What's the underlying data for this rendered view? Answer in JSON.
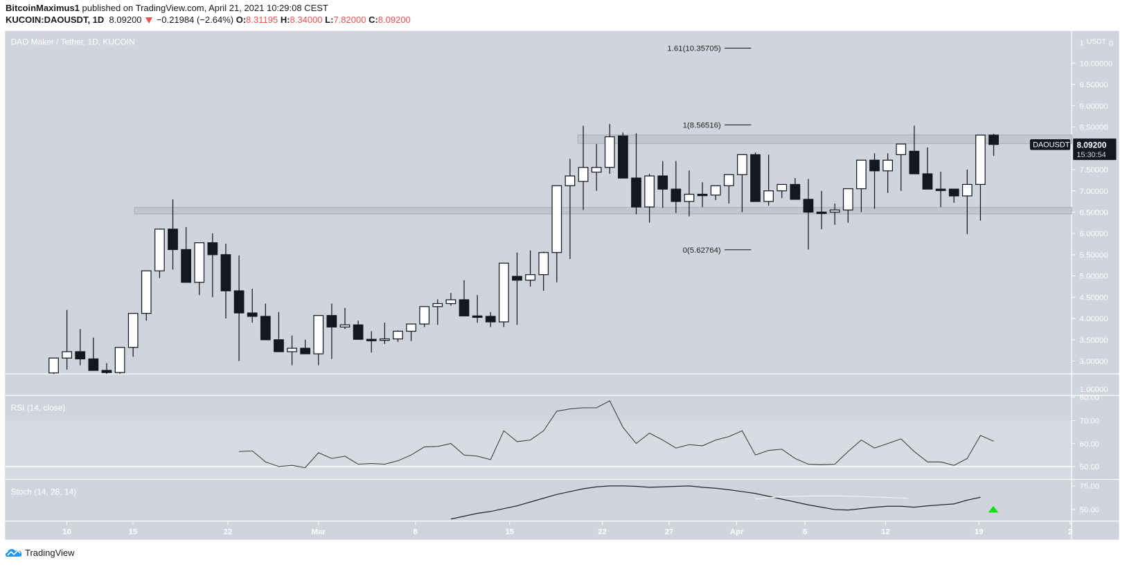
{
  "header": {
    "author": "BitcoinMaximus1",
    "published_text": " published on TradingView.com, April 21, 2021 10:29:08 CEST",
    "symbol": "KUCOIN:DAOUSDT, 1D",
    "last": "8.09200",
    "change": "−0.21984 (−2.64%)",
    "o_label": "O:",
    "o": "8.31195",
    "h_label": "H:",
    "h": "8.34000",
    "l_label": "L:",
    "l": "7.82000",
    "c_label": "C:",
    "c": "8.09200"
  },
  "colors": {
    "pane_bg": "#d1d4dc",
    "rsi_band": "#d8dbe2",
    "bull_body": "#ffffff",
    "bear_body": "#131722",
    "outline": "#131722",
    "zone_fill": "#c3c6cf",
    "zone_stroke": "#a9acb4",
    "axis_text": "#ffffff",
    "green_arrow": "#00e600",
    "loss_red": "#ef5350"
  },
  "main_pane": {
    "legend": "DAO Maker / Tether, 1D, KUCOIN",
    "currency": "USDT",
    "y_ticks": [
      "10.00000",
      "9.50000",
      "9.00000",
      "8.50000",
      "7.50000",
      "7.00000",
      "6.50000",
      "6.00000",
      "5.50000",
      "5.00000",
      "4.50000",
      "4.00000",
      "3.50000",
      "3.00000"
    ],
    "last_price_label": "8.09200",
    "countdown": "15:30:54",
    "symbol_tag": "DAOUSDT",
    "below_axis_label": "1.00000",
    "fib_labels": [
      "1.61(10.35705)",
      "1(8.56516)",
      "0(5.62764)"
    ]
  },
  "rsi_pane": {
    "legend": "RSI (14, close)",
    "y_ticks": [
      "80.00",
      "70.00",
      "60.00",
      "50.00"
    ]
  },
  "stoch_pane": {
    "legend": "Stoch (14, 28, 14)",
    "y_ticks": [
      "75.00",
      "50.00"
    ]
  },
  "x_axis": {
    "labels": [
      "10",
      "15",
      "22",
      "Mar",
      "8",
      "15",
      "22",
      "27",
      "Apr",
      "6",
      "12",
      "19",
      "2"
    ]
  },
  "footer": {
    "brand": "TradingView"
  },
  "chart_data": [
    {
      "type": "candlestick",
      "title": "DAO Maker / Tether, 1D, KUCOIN",
      "xlabel": "",
      "ylabel": "USDT",
      "ylim": [
        2.75,
        10.5
      ],
      "x": [
        "Feb 9",
        "Feb 10",
        "Feb 11",
        "Feb 12",
        "Feb 13",
        "Feb 14",
        "Feb 15",
        "Feb 16",
        "Feb 17",
        "Feb 18",
        "Feb 19",
        "Feb 20",
        "Feb 21",
        "Feb 22",
        "Feb 23",
        "Feb 24",
        "Feb 25",
        "Feb 26",
        "Feb 27",
        "Feb 28",
        "Mar 1",
        "Mar 2",
        "Mar 3",
        "Mar 4",
        "Mar 5",
        "Mar 6",
        "Mar 7",
        "Mar 8",
        "Mar 9",
        "Mar 10",
        "Mar 11",
        "Mar 12",
        "Mar 13",
        "Mar 14",
        "Mar 15",
        "Mar 16",
        "Mar 17",
        "Mar 18",
        "Mar 19",
        "Mar 20",
        "Mar 21",
        "Mar 22",
        "Mar 23",
        "Mar 24",
        "Mar 25",
        "Mar 26",
        "Mar 27",
        "Mar 28",
        "Mar 29",
        "Mar 30",
        "Mar 31",
        "Apr 1",
        "Apr 2",
        "Apr 3",
        "Apr 4",
        "Apr 5",
        "Apr 6",
        "Apr 7",
        "Apr 8",
        "Apr 9",
        "Apr 10",
        "Apr 11",
        "Apr 12",
        "Apr 13",
        "Apr 14",
        "Apr 15",
        "Apr 16",
        "Apr 17",
        "Apr 18",
        "Apr 19",
        "Apr 20",
        "Apr 21"
      ],
      "open": [
        2.72,
        3.07,
        3.22,
        3.05,
        2.78,
        2.73,
        3.32,
        4.12,
        5.12,
        6.1,
        5.62,
        4.85,
        5.78,
        5.5,
        4.65,
        4.13,
        4.05,
        3.5,
        3.22,
        3.3,
        3.17,
        4.07,
        3.8,
        3.85,
        3.51,
        3.49,
        3.52,
        3.7,
        3.87,
        4.28,
        4.35,
        4.44,
        4.06,
        4.05,
        3.92,
        4.99,
        4.9,
        5.03,
        5.55,
        7.12,
        7.22,
        7.44,
        7.55,
        8.29,
        7.3,
        6.62,
        7.35,
        7.04,
        6.75,
        6.92,
        6.9,
        7.12,
        7.38,
        7.85,
        6.75,
        7.0,
        7.15,
        6.8,
        6.5,
        6.5,
        6.55,
        7.05,
        7.72,
        7.47,
        7.85,
        7.93,
        7.4,
        7.04,
        7.04,
        6.88,
        7.15,
        8.31
      ],
      "high": [
        2.9,
        4.2,
        3.75,
        3.55,
        2.95,
        2.9,
        3.4,
        4.4,
        5.15,
        6.8,
        6.15,
        5.78,
        6.0,
        5.76,
        5.48,
        4.7,
        4.35,
        4.15,
        3.6,
        3.5,
        3.4,
        4.35,
        4.25,
        3.95,
        3.7,
        3.9,
        3.72,
        3.8,
        4.05,
        4.45,
        4.6,
        4.9,
        4.55,
        4.15,
        4.1,
        5.55,
        5.6,
        5.57,
        5.78,
        7.75,
        8.53,
        8.1,
        8.57,
        8.37,
        8.35,
        7.4,
        7.7,
        7.7,
        7.48,
        7.2,
        7.05,
        7.38,
        7.5,
        7.9,
        7.85,
        7.12,
        7.3,
        7.28,
        7.0,
        6.7,
        6.7,
        7.2,
        7.88,
        7.88,
        7.97,
        8.53,
        8.02,
        7.45,
        7.02,
        7.5,
        7.98,
        8.34
      ],
      "low": [
        2.65,
        2.8,
        2.9,
        2.85,
        2.65,
        2.6,
        3.1,
        3.95,
        4.95,
        5.15,
        5.25,
        4.55,
        4.5,
        4.0,
        3.0,
        3.9,
        4.0,
        3.48,
        2.9,
        3.2,
        2.9,
        3.05,
        3.75,
        3.55,
        3.2,
        3.4,
        3.45,
        3.47,
        3.8,
        3.85,
        4.3,
        4.4,
        3.9,
        3.8,
        3.8,
        3.85,
        4.75,
        4.65,
        4.85,
        5.4,
        6.55,
        7.0,
        7.4,
        7.3,
        6.45,
        6.25,
        6.6,
        6.48,
        6.4,
        6.62,
        6.78,
        6.7,
        6.5,
        7.35,
        6.65,
        6.83,
        6.85,
        5.62,
        6.1,
        6.2,
        6.25,
        6.5,
        6.58,
        6.95,
        7.0,
        7.4,
        7.1,
        6.62,
        6.72,
        5.98,
        6.3,
        7.82
      ],
      "close": [
        3.07,
        3.22,
        3.05,
        2.78,
        2.73,
        3.32,
        4.12,
        5.12,
        6.1,
        5.62,
        4.85,
        5.78,
        5.5,
        4.65,
        4.13,
        4.05,
        3.5,
        3.22,
        3.3,
        3.17,
        4.07,
        3.8,
        3.85,
        3.51,
        3.49,
        3.52,
        3.7,
        3.87,
        4.28,
        4.35,
        4.44,
        4.06,
        4.05,
        3.92,
        5.3,
        4.9,
        5.03,
        5.55,
        7.12,
        7.35,
        7.55,
        7.55,
        8.27,
        7.3,
        6.62,
        7.35,
        7.04,
        6.75,
        6.92,
        6.9,
        7.12,
        7.38,
        7.85,
        6.75,
        7.0,
        7.15,
        6.8,
        6.5,
        6.47,
        6.55,
        7.05,
        7.72,
        7.47,
        7.72,
        8.1,
        7.4,
        7.04,
        7.02,
        6.88,
        7.15,
        8.31,
        8.09
      ]
    },
    {
      "type": "line",
      "title": "RSI (14, close)",
      "ylim": [
        45,
        80
      ],
      "x": [
        "Feb 23",
        "Feb 24",
        "Feb 25",
        "Feb 26",
        "Feb 27",
        "Feb 28",
        "Mar 1",
        "Mar 2",
        "Mar 3",
        "Mar 4",
        "Mar 5",
        "Mar 6",
        "Mar 7",
        "Mar 8",
        "Mar 9",
        "Mar 10",
        "Mar 11",
        "Mar 12",
        "Mar 13",
        "Mar 14",
        "Mar 15",
        "Mar 16",
        "Mar 17",
        "Mar 18",
        "Mar 19",
        "Mar 20",
        "Mar 21",
        "Mar 22",
        "Mar 23",
        "Mar 24",
        "Mar 25",
        "Mar 26",
        "Mar 27",
        "Mar 28",
        "Mar 29",
        "Mar 30",
        "Mar 31",
        "Apr 1",
        "Apr 2",
        "Apr 3",
        "Apr 4",
        "Apr 5",
        "Apr 6",
        "Apr 7",
        "Apr 8",
        "Apr 9",
        "Apr 10",
        "Apr 11",
        "Apr 12",
        "Apr 13",
        "Apr 14",
        "Apr 15",
        "Apr 16",
        "Apr 17",
        "Apr 18",
        "Apr 19",
        "Apr 20",
        "Apr 21"
      ],
      "values": [
        56.5,
        56.8,
        52,
        50,
        50.5,
        49.5,
        56,
        53.5,
        54.5,
        51,
        51.3,
        51,
        52.5,
        55,
        58.5,
        58.7,
        60,
        55,
        54.5,
        53,
        65.5,
        60.8,
        61.5,
        65.5,
        74,
        75,
        75.5,
        75.5,
        78.5,
        67,
        60,
        64.5,
        61.5,
        58,
        59.5,
        59,
        61.5,
        63,
        65.5,
        55,
        57,
        57.5,
        53.5,
        51,
        50.8,
        51,
        56.5,
        61.5,
        58,
        60,
        62,
        56.5,
        52,
        52,
        50.5,
        53.5,
        63.5,
        61
      ]
    },
    {
      "type": "line",
      "title": "Stoch (14, 28, 14)",
      "ylim": [
        35,
        80
      ],
      "series": [
        {
          "name": "%K",
          "x_start": "Mar 10",
          "values": [
            37,
            40,
            43,
            46,
            48,
            51,
            54,
            58,
            62,
            66,
            69,
            72,
            74,
            75,
            75,
            74.5,
            73.5,
            74,
            74.5,
            75,
            73.5,
            72.5,
            71,
            69,
            67,
            64,
            61,
            58,
            55,
            52.5,
            50,
            49.5,
            51,
            52.5,
            53.5,
            53.5,
            52.5,
            54,
            55,
            56,
            60,
            63
          ]
        },
        {
          "name": "%D",
          "x_start": "Apr 3",
          "values": [
            61,
            62.5,
            63.5,
            64,
            64.3,
            64.5,
            64.5,
            64.3,
            64,
            63.5,
            63,
            62.5,
            62
          ]
        }
      ],
      "annotations": [
        "green up-arrow signal at Apr 20"
      ]
    }
  ]
}
